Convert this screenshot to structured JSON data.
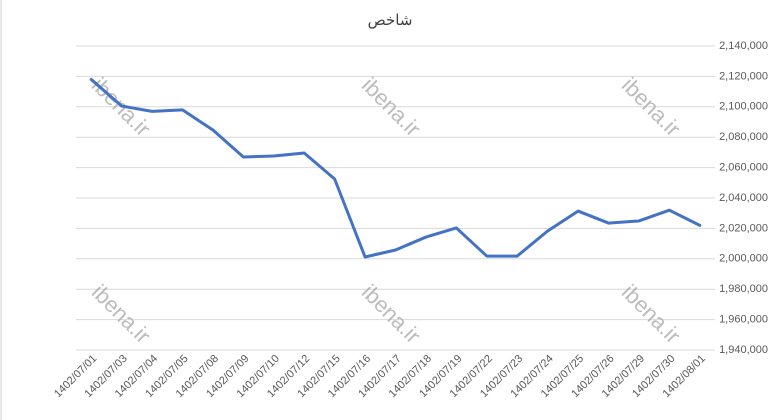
{
  "chart_data": {
    "type": "line",
    "title": "شاخص",
    "watermark": "ibena.ir",
    "categories": [
      "1402/07/01",
      "1402/07/03",
      "1402/07/04",
      "1402/07/05",
      "1402/07/08",
      "1402/07/09",
      "1402/07/10",
      "1402/07/12",
      "1402/07/15",
      "1402/07/16",
      "1402/07/17",
      "1402/07/18",
      "1402/07/19",
      "1402/07/22",
      "1402/07/23",
      "1402/07/24",
      "1402/07/25",
      "1402/07/26",
      "1402/07/29",
      "1402/07/30",
      "1402/08/01"
    ],
    "series": [
      {
        "color": "#4472c4",
        "values": [
          2118000,
          2100500,
          2097000,
          2098000,
          2084700,
          2067000,
          2067600,
          2069600,
          2052500,
          2001200,
          2005800,
          2014300,
          2020300,
          2001800,
          2001800,
          2018300,
          2031400,
          2023500,
          2024900,
          2032000,
          2022000
        ]
      }
    ],
    "ylim": [
      1940000,
      2140000
    ],
    "yticks": [
      {
        "value": 1940000,
        "label": "1,940,000"
      },
      {
        "value": 1960000,
        "label": "1,960,000"
      },
      {
        "value": 1980000,
        "label": "1,980,000"
      },
      {
        "value": 2000000,
        "label": "2,000,000"
      },
      {
        "value": 2020000,
        "label": "2,020,000"
      },
      {
        "value": 2040000,
        "label": "2,040,000"
      },
      {
        "value": 2060000,
        "label": "2,060,000"
      },
      {
        "value": 2080000,
        "label": "2,080,000"
      },
      {
        "value": 2100000,
        "label": "2,100,000"
      },
      {
        "value": 2120000,
        "label": "2,120,000"
      },
      {
        "value": 2140000,
        "label": "2,140,000"
      }
    ],
    "grid": true
  }
}
